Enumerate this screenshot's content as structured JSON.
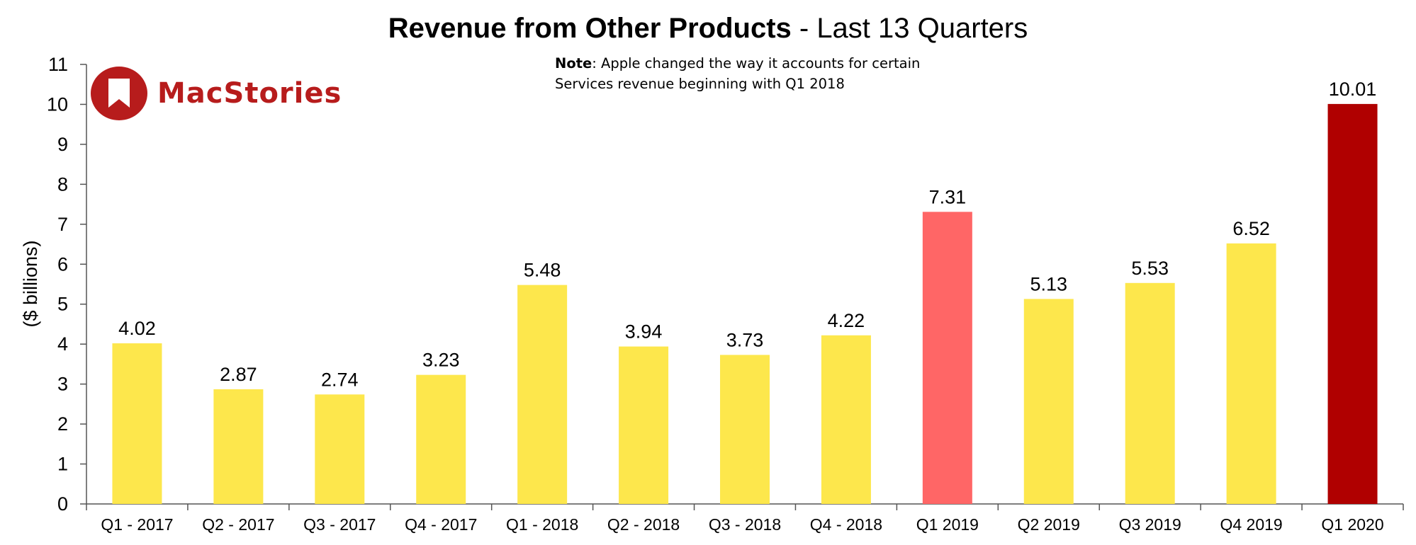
{
  "chart_data": {
    "type": "bar",
    "title_bold": "Revenue from Other Products",
    "title_rest": " - Last 13 Quarters",
    "xlabel": "",
    "ylabel": "($ billions)",
    "ylim": [
      0,
      11
    ],
    "yticks": [
      0,
      1,
      2,
      3,
      4,
      5,
      6,
      7,
      8,
      9,
      10,
      11
    ],
    "categories": [
      "Q1 - 2017",
      "Q2 - 2017",
      "Q3 - 2017",
      "Q4 - 2017",
      "Q1 - 2018",
      "Q2 - 2018",
      "Q3 - 2018",
      "Q4 - 2018",
      "Q1 2019",
      "Q2 2019",
      "Q3 2019",
      "Q4 2019",
      "Q1 2020"
    ],
    "values": [
      4.02,
      2.87,
      2.74,
      3.23,
      5.48,
      3.94,
      3.73,
      4.22,
      7.31,
      5.13,
      5.53,
      6.52,
      10.01
    ],
    "value_labels": [
      "4.02",
      "2.87",
      "2.74",
      "3.23",
      "5.48",
      "3.94",
      "3.73",
      "4.22",
      "7.31",
      "5.13",
      "5.53",
      "6.52",
      "10.01"
    ],
    "bar_colors": [
      "#fde74c",
      "#fde74c",
      "#fde74c",
      "#fde74c",
      "#fde74c",
      "#fde74c",
      "#fde74c",
      "#fde74c",
      "#ff6666",
      "#fde74c",
      "#fde74c",
      "#fde74c",
      "#b00000"
    ],
    "grid": false
  },
  "note": {
    "label": "Note",
    "text": ": Apple changed the way it accounts for certain Services revenue beginning with Q1 2018"
  },
  "logo": {
    "text": "MacStories",
    "color": "#b71c1c",
    "icon": "bookmark-icon"
  }
}
